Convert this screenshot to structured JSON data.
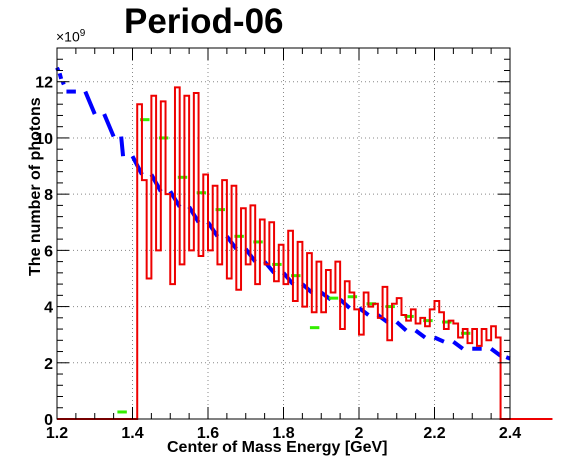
{
  "chart_data": {
    "type": "histogram",
    "title": "Period-06",
    "xlabel": "Center of Mass Energy [GeV]",
    "ylabel": "The number of photons",
    "y_multiplier": "×10",
    "y_multiplier_exp": "9",
    "xlim": [
      1.2,
      2.4
    ],
    "ylim": [
      0,
      13.2
    ],
    "x_ticks": [
      "1.2",
      "1.4",
      "1.6",
      "1.8",
      "2",
      "2.2",
      "2.4"
    ],
    "x_tick_values": [
      1.2,
      1.4,
      1.6,
      1.8,
      2.0,
      2.2,
      2.4
    ],
    "y_ticks": [
      "0",
      "2",
      "4",
      "6",
      "8",
      "10",
      "12"
    ],
    "y_tick_values": [
      0,
      2,
      4,
      6,
      8,
      10,
      12
    ],
    "grid": true,
    "series": [
      {
        "color": "#0000ff",
        "style": "segments",
        "points": [
          [
            1.2,
            12.5
          ],
          [
            1.2035,
            12.4
          ],
          [
            1.207,
            12.3
          ],
          [
            1.211,
            12.1
          ],
          [
            1.215,
            12.0
          ],
          [
            1.218,
            11.9
          ],
          [
            1.225,
            11.65
          ],
          [
            1.25,
            11.65
          ],
          [
            1.275,
            11.65
          ],
          [
            1.3,
            10.85
          ],
          [
            1.325,
            10.85
          ],
          [
            1.35,
            10.05
          ],
          [
            1.37,
            10.05
          ],
          [
            1.375,
            9.35
          ],
          [
            1.4,
            9.35
          ],
          [
            1.425,
            8.7
          ],
          [
            1.45,
            8.7
          ],
          [
            1.475,
            8.1
          ],
          [
            1.5,
            8.1
          ],
          [
            1.525,
            7.55
          ],
          [
            1.55,
            7.55
          ],
          [
            1.575,
            7.0
          ],
          [
            1.6,
            7.0
          ],
          [
            1.625,
            6.5
          ],
          [
            1.65,
            6.5
          ],
          [
            1.675,
            6.05
          ],
          [
            1.7,
            6.05
          ],
          [
            1.725,
            5.6
          ],
          [
            1.75,
            5.6
          ],
          [
            1.775,
            5.2
          ],
          [
            1.8,
            5.2
          ],
          [
            1.825,
            4.8
          ],
          [
            1.85,
            4.8
          ],
          [
            1.875,
            4.5
          ],
          [
            1.9,
            4.5
          ],
          [
            1.925,
            4.25
          ],
          [
            1.95,
            4.25
          ],
          [
            1.975,
            3.95
          ],
          [
            2.0,
            3.95
          ],
          [
            2.025,
            3.7
          ],
          [
            2.05,
            3.7
          ],
          [
            2.075,
            3.45
          ],
          [
            2.1,
            3.45
          ],
          [
            2.125,
            3.15
          ],
          [
            2.15,
            3.15
          ],
          [
            2.175,
            2.9
          ],
          [
            2.2,
            2.9
          ],
          [
            2.225,
            2.75
          ],
          [
            2.25,
            2.75
          ],
          [
            2.275,
            2.5
          ],
          [
            2.3,
            2.5
          ],
          [
            2.325,
            2.5
          ],
          [
            2.35,
            2.5
          ],
          [
            2.375,
            2.25
          ],
          [
            2.39,
            2.2
          ],
          [
            2.4,
            2.15
          ]
        ]
      },
      {
        "color": "#33ee00",
        "style": "segments",
        "points": [
          [
            1.36,
            0.25
          ],
          [
            1.385,
            0.25
          ],
          [
            1.42,
            10.65
          ],
          [
            1.445,
            10.65
          ],
          [
            1.47,
            10.0
          ],
          [
            1.495,
            10.0
          ],
          [
            1.52,
            8.6
          ],
          [
            1.545,
            8.6
          ],
          [
            1.57,
            8.05
          ],
          [
            1.595,
            8.05
          ],
          [
            1.62,
            7.45
          ],
          [
            1.645,
            7.45
          ],
          [
            1.67,
            6.5
          ],
          [
            1.695,
            6.5
          ],
          [
            1.72,
            6.3
          ],
          [
            1.745,
            6.3
          ],
          [
            1.77,
            5.5
          ],
          [
            1.795,
            5.5
          ],
          [
            1.82,
            5.1
          ],
          [
            1.845,
            5.1
          ],
          [
            1.87,
            3.25
          ],
          [
            1.895,
            3.25
          ],
          [
            1.92,
            4.3
          ],
          [
            1.945,
            4.3
          ],
          [
            1.97,
            4.35
          ],
          [
            1.995,
            4.35
          ],
          [
            2.02,
            4.1
          ],
          [
            2.045,
            4.1
          ],
          [
            2.07,
            4.0
          ],
          [
            2.095,
            4.0
          ],
          [
            2.12,
            3.65
          ],
          [
            2.145,
            3.65
          ],
          [
            2.17,
            3.5
          ],
          [
            2.195,
            3.5
          ],
          [
            2.22,
            3.45
          ],
          [
            2.245,
            3.45
          ],
          [
            2.27,
            3.05
          ],
          [
            2.295,
            3.05
          ]
        ]
      },
      {
        "color": "#ee0000",
        "style": "histogram",
        "x_start": 1.2,
        "bin_width": 0.0125,
        "values": [
          0,
          0,
          0,
          0,
          0,
          0,
          0,
          0,
          0,
          0,
          0,
          0,
          0,
          0,
          0,
          0,
          0,
          11.2,
          8.5,
          5.0,
          11.5,
          6.0,
          11.3,
          8.0,
          4.8,
          11.8,
          5.5,
          11.5,
          6.0,
          11.6,
          5.8,
          8.7,
          6.0,
          8.3,
          5.5,
          8.5,
          5.0,
          8.3,
          4.6,
          7.5,
          5.5,
          7.6,
          4.8,
          7.1,
          5.5,
          7.0,
          4.9,
          6.2,
          4.8,
          6.7,
          4.2,
          6.3,
          4.0,
          5.9,
          3.8,
          5.6,
          3.8,
          5.3,
          4.5,
          5.6,
          3.2,
          4.9,
          4.5,
          3.9,
          3.0,
          4.5,
          4.0,
          4.1,
          3.6,
          4.7,
          2.8,
          4.1,
          4.3,
          3.7,
          3.5,
          3.9,
          3.4,
          3.6,
          3.3,
          3.9,
          4.2,
          3.8,
          3.2,
          3.5,
          3.4,
          2.9,
          3.2,
          2.7,
          3.2,
          2.6,
          3.2,
          2.8,
          3.3,
          2.9,
          0,
          0,
          0,
          0,
          0,
          0,
          0,
          0,
          0,
          0,
          0
        ]
      }
    ]
  }
}
